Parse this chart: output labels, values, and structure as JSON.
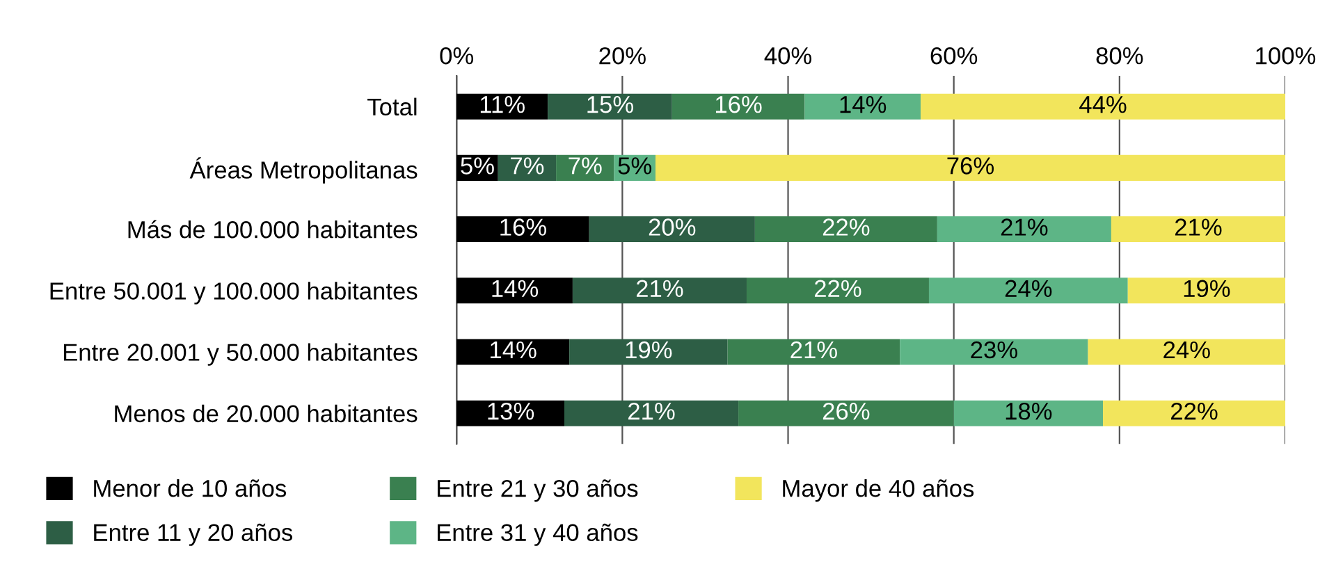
{
  "chart_data": {
    "type": "bar",
    "orientation": "horizontal",
    "stacked": true,
    "categories": [
      "Total",
      "Áreas Metropolitanas",
      "Más de 100.000 habitantes",
      "Entre 50.001 y 100.000 habitantes",
      "Entre 20.001 y 50.000 habitantes",
      "Menos de 20.000 habitantes"
    ],
    "series": [
      {
        "name": "Menor de 10 años",
        "color": "#000000",
        "values": [
          11,
          5,
          16,
          14,
          13.6,
          13
        ],
        "value_labels": [
          "11%",
          "5%",
          "16%",
          "14%",
          "14%",
          "13%"
        ]
      },
      {
        "name": "Entre 11 y 20 años",
        "color": "#2d5e45",
        "values": [
          15,
          7,
          20,
          21,
          19.1,
          21
        ],
        "value_labels": [
          "15%",
          "7%",
          "20%",
          "21%",
          "19%",
          "21%"
        ]
      },
      {
        "name": "Entre 21 y 30 años",
        "color": "#3a8050",
        "values": [
          16,
          7,
          22,
          22,
          20.8,
          26
        ],
        "value_labels": [
          "16%",
          "7%",
          "22%",
          "22%",
          "21%",
          "26%"
        ]
      },
      {
        "name": "Entre 31 y 40 años",
        "color": "#5db586",
        "values": [
          14,
          5,
          21,
          24,
          22.7,
          18
        ],
        "value_labels": [
          "14%",
          "5%",
          "21%",
          "24%",
          "23%",
          "18%"
        ]
      },
      {
        "name": "Mayor de 40 años",
        "color": "#f2e55c",
        "values": [
          44,
          76,
          21,
          19,
          23.8,
          22
        ],
        "value_labels": [
          "44%",
          "76%",
          "21%",
          "19%",
          "24%",
          "22%"
        ]
      }
    ],
    "xlim": [
      0,
      100
    ],
    "xticks": [
      {
        "value": 0,
        "label": "0%"
      },
      {
        "value": 20,
        "label": "20%"
      },
      {
        "value": 40,
        "label": "40%"
      },
      {
        "value": 60,
        "label": "60%"
      },
      {
        "value": 80,
        "label": "80%"
      },
      {
        "value": 100,
        "label": "100%"
      }
    ],
    "grid": "x",
    "legend": "bottom"
  }
}
